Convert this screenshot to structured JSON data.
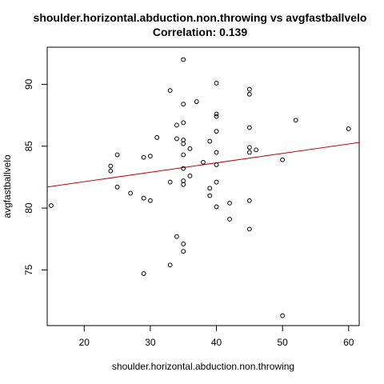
{
  "chart_data": {
    "type": "scatter",
    "title": "shoulder.horizontal.abduction.non.throwing vs avgfastballvelo",
    "subtitle": "Correlation: 0.139",
    "xlabel": "shoulder.horizontal.abduction.non.throwing",
    "ylabel": "avgfastballvelo",
    "xlim": [
      14.4,
      61.6
    ],
    "ylim": [
      70.5,
      93
    ],
    "x_ticks": [
      20,
      30,
      40,
      50,
      60
    ],
    "y_ticks": [
      75,
      80,
      85,
      90
    ],
    "grid": false,
    "point_style": "open-circle",
    "point_color": "#000000",
    "trendline": {
      "x": [
        14.4,
        61.6
      ],
      "y": [
        81.7,
        85.3
      ],
      "color": "#cc0000"
    },
    "points": [
      [
        15,
        80.2
      ],
      [
        24,
        83.4
      ],
      [
        24,
        83.0
      ],
      [
        25,
        84.3
      ],
      [
        25,
        81.7
      ],
      [
        27,
        81.2
      ],
      [
        29,
        84.1
      ],
      [
        29,
        80.8
      ],
      [
        29,
        74.7
      ],
      [
        30,
        84.2
      ],
      [
        30,
        80.6
      ],
      [
        31,
        85.7
      ],
      [
        33,
        89.5
      ],
      [
        33,
        82.1
      ],
      [
        33,
        75.4
      ],
      [
        34,
        86.7
      ],
      [
        34,
        85.6
      ],
      [
        34,
        77.7
      ],
      [
        35,
        92.0
      ],
      [
        35,
        88.4
      ],
      [
        35,
        86.9
      ],
      [
        35,
        85.5
      ],
      [
        35,
        85.2
      ],
      [
        35,
        84.3
      ],
      [
        35,
        83.2
      ],
      [
        35,
        82.2
      ],
      [
        35,
        81.9
      ],
      [
        35,
        77.1
      ],
      [
        35,
        76.5
      ],
      [
        36,
        84.8
      ],
      [
        36,
        82.6
      ],
      [
        37,
        88.6
      ],
      [
        38,
        83.7
      ],
      [
        39,
        85.4
      ],
      [
        39,
        81.6
      ],
      [
        39,
        81.0
      ],
      [
        40,
        90.1
      ],
      [
        40,
        87.6
      ],
      [
        40,
        87.4
      ],
      [
        40,
        86.2
      ],
      [
        40,
        84.5
      ],
      [
        40,
        83.5
      ],
      [
        40,
        82.1
      ],
      [
        40,
        80.1
      ],
      [
        42,
        80.4
      ],
      [
        42,
        79.1
      ],
      [
        45,
        89.6
      ],
      [
        45,
        89.2
      ],
      [
        45,
        86.5
      ],
      [
        45,
        84.9
      ],
      [
        45,
        84.5
      ],
      [
        45,
        80.6
      ],
      [
        45,
        78.3
      ],
      [
        46,
        84.7
      ],
      [
        50,
        83.9
      ],
      [
        50,
        71.3
      ],
      [
        52,
        87.1
      ],
      [
        60,
        86.4
      ]
    ]
  }
}
